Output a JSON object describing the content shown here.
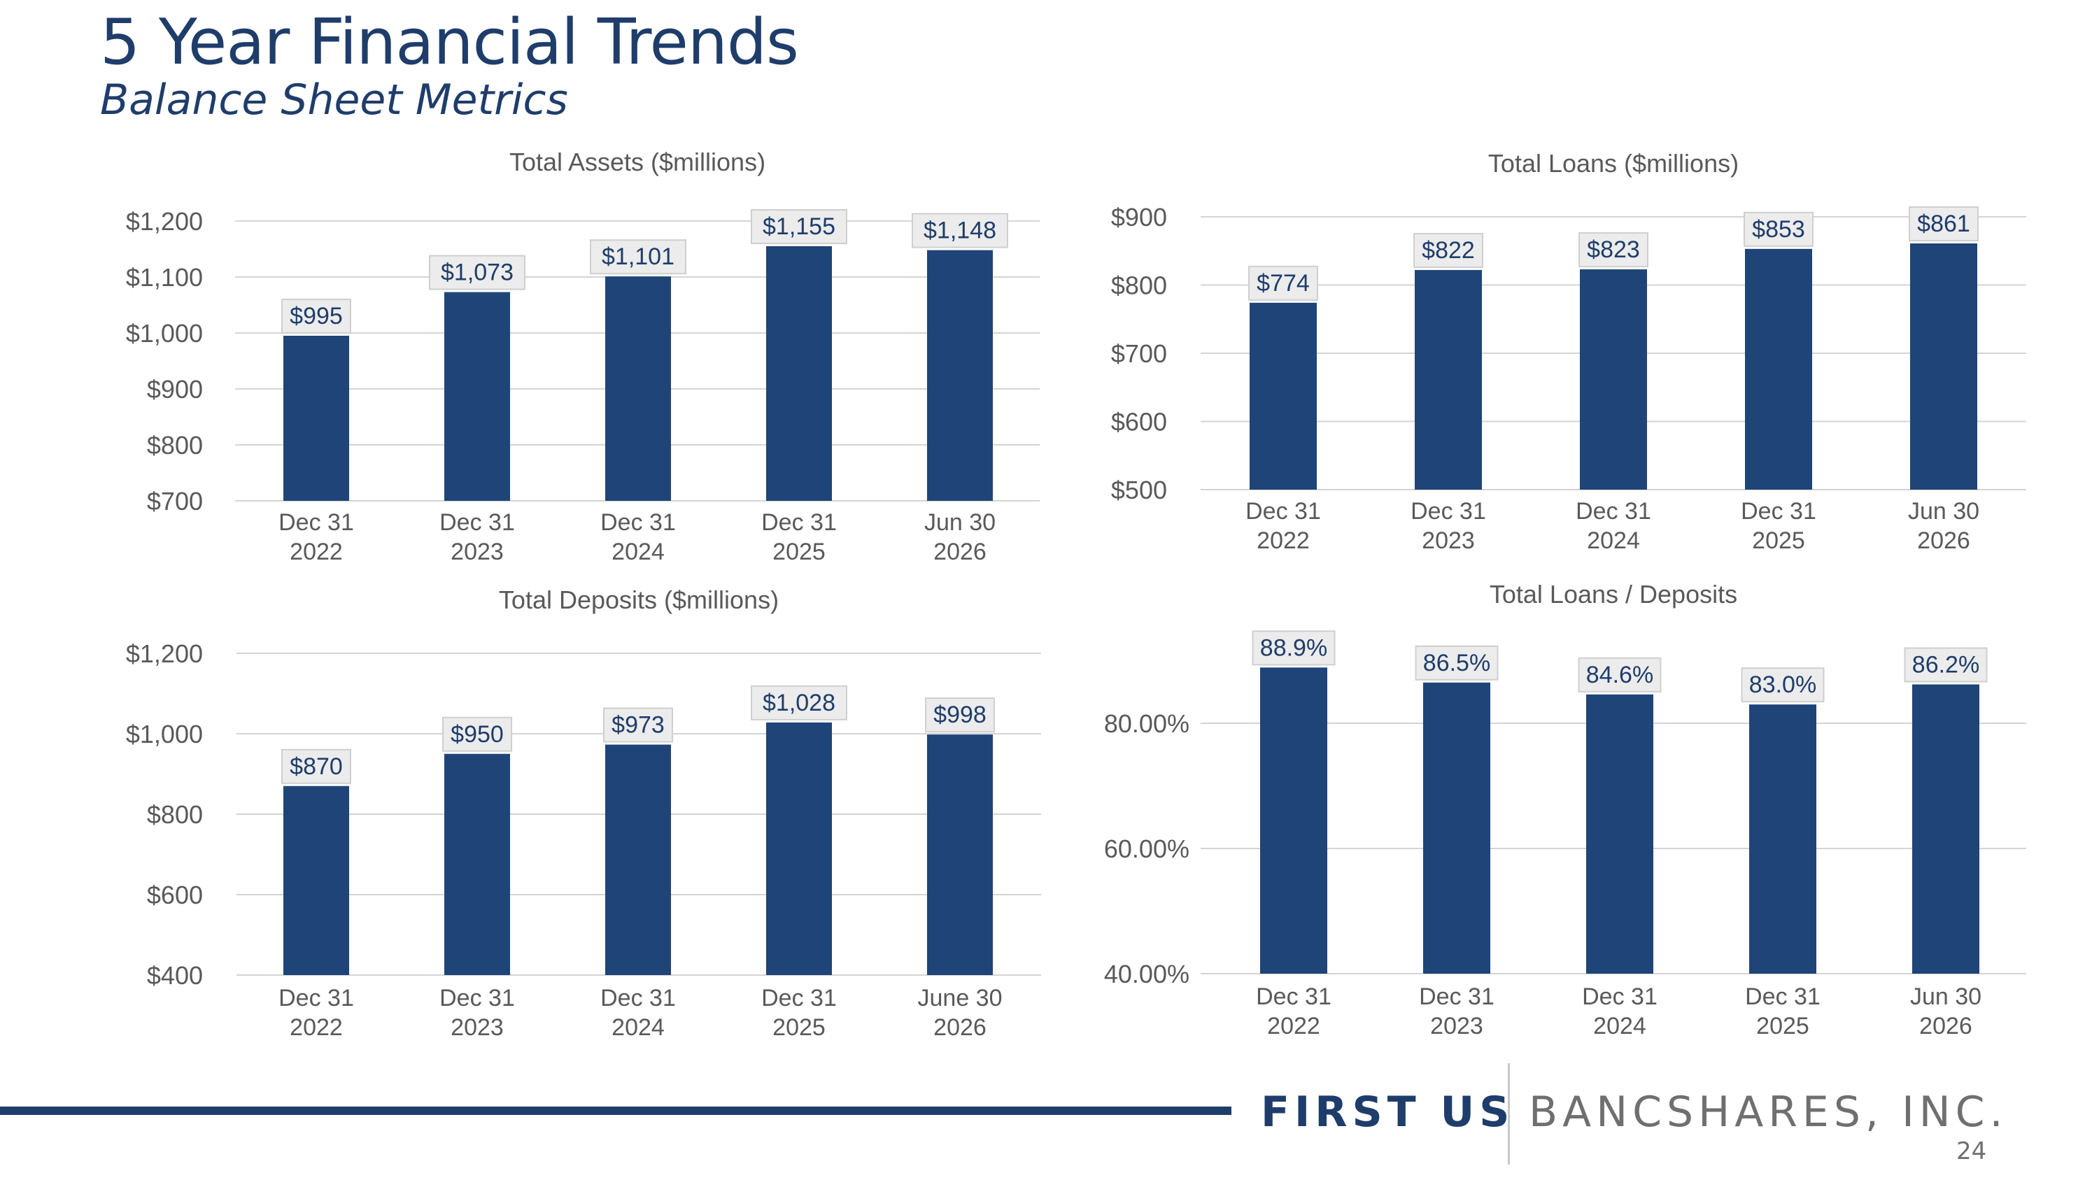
{
  "header": {
    "title": "5 Year Financial Trends",
    "subtitle": "Balance Sheet Metrics"
  },
  "chart_data": [
    {
      "type": "bar",
      "title": "Total Assets ($millions)",
      "categories": [
        "Dec 31\n2022",
        "Dec 31\n2023",
        "Dec 31\n2024",
        "Dec 31\n2025",
        "Jun 30\n2026"
      ],
      "values": [
        995,
        1073,
        1101,
        1155,
        1148
      ],
      "data_labels": [
        "$995",
        "$1,073",
        "$1,101",
        "$1,155",
        "$1,148"
      ],
      "y_ticks": [
        700,
        800,
        900,
        1000,
        1100,
        1200
      ],
      "y_tick_labels": [
        "$700",
        "$800",
        "$900",
        "$1,000",
        "$1,100",
        "$1,200"
      ],
      "ylim": [
        700,
        1200
      ],
      "grid": true,
      "bar_color": "#1f4477"
    },
    {
      "type": "bar",
      "title": "Total Loans ($millions)",
      "categories": [
        "Dec 31\n2022",
        "Dec 31\n2023",
        "Dec 31\n2024",
        "Dec 31\n2025",
        "Jun 30\n2026"
      ],
      "values": [
        774,
        822,
        823,
        853,
        861
      ],
      "data_labels": [
        "$774",
        "$822",
        "$823",
        "$853",
        "$861"
      ],
      "y_ticks": [
        500,
        600,
        700,
        800,
        900
      ],
      "y_tick_labels": [
        "$500",
        "$600",
        "$700",
        "$800",
        "$900"
      ],
      "ylim": [
        500,
        900
      ],
      "grid": true,
      "bar_color": "#1f4477"
    },
    {
      "type": "bar",
      "title": "Total Deposits ($millions)",
      "categories": [
        "Dec 31\n2022",
        "Dec 31\n2023",
        "Dec 31\n2024",
        "Dec 31\n2025",
        "June 30\n2026"
      ],
      "values": [
        870,
        950,
        973,
        1028,
        998
      ],
      "data_labels": [
        "$870",
        "$950",
        "$973",
        "$1,028",
        "$998"
      ],
      "y_ticks": [
        400,
        600,
        800,
        1000,
        1200
      ],
      "y_tick_labels": [
        "$400",
        "$600",
        "$800",
        "$1,000",
        "$1,200"
      ],
      "ylim": [
        400,
        1200
      ],
      "grid": true,
      "bar_color": "#1f4477"
    },
    {
      "type": "bar",
      "title": "Total Loans / Deposits",
      "categories": [
        "Dec 31\n2022",
        "Dec 31\n2023",
        "Dec 31\n2024",
        "Dec 31\n2025",
        "Jun 30\n2026"
      ],
      "values": [
        88.9,
        86.5,
        84.6,
        83.0,
        86.2
      ],
      "data_labels": [
        "88.9%",
        "86.5%",
        "84.6%",
        "83.0%",
        "86.2%"
      ],
      "y_ticks": [
        40,
        60,
        80
      ],
      "y_tick_labels": [
        "40.00%",
        "60.00%",
        "80.00%"
      ],
      "ylim": [
        40,
        100
      ],
      "grid": true,
      "bar_color": "#1f4477"
    }
  ],
  "footer": {
    "brand_left": "FIRST US",
    "brand_right": "BANCSHARES, INC.",
    "page_number": "24"
  },
  "colors": {
    "accent": "#1f3d6b",
    "bar": "#1f4477",
    "label_box": "#ececec",
    "axis_text": "#595959",
    "gridline": "#d4d4d4"
  }
}
